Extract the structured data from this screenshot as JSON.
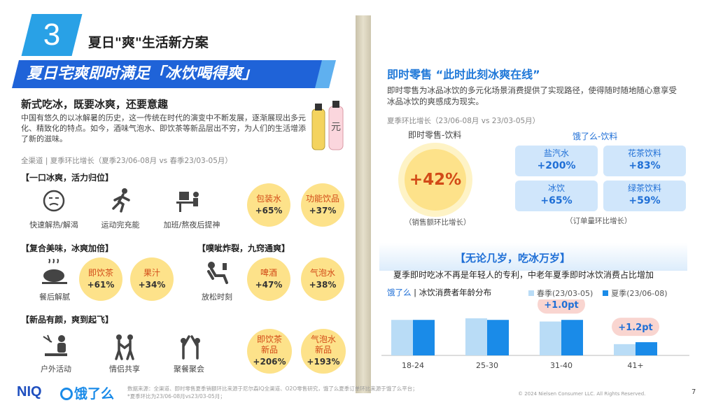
{
  "section": {
    "number": "3",
    "title": "夏日\"爽\"生活新方案"
  },
  "banner": {
    "text": "夏日宅爽即时满足「冰饮喝得爽」"
  },
  "left": {
    "heading": "新式吃冰，既要冰爽，还要意趣",
    "body": "中国有悠久的以冰解暑的历史，这一传统在时代的演变中不断发展，逐渐展现出多元化、精致化的特点。如今，酒味气泡水、即饮茶等新品层出不穷，为人们的生活增添了新的滋味。",
    "source_note": "全渠道 | 夏季环比增长（夏季23/06-08月 vs 春季23/03-05月）",
    "group1": {
      "title": "【一口冰爽，活力归位】",
      "icons": [
        {
          "icon": "tired-face-icon",
          "label": "快速解热/解渴"
        },
        {
          "icon": "running-person-icon",
          "label": "运动完充能"
        },
        {
          "icon": "desk-worker-icon",
          "label": "加班/熬夜后提神"
        }
      ],
      "circles": [
        {
          "name": "包装水",
          "value": "+65%"
        },
        {
          "name": "功能饮品",
          "value": "+37%"
        }
      ]
    },
    "group2": {
      "title": "【复合美味，冰爽加倍】",
      "icons": [
        {
          "icon": "roast-chicken-icon",
          "label": "餐后解腻"
        }
      ],
      "circles": [
        {
          "name": "即饮茶",
          "value": "+61%"
        },
        {
          "name": "果汁",
          "value": "+34%"
        }
      ]
    },
    "group3": {
      "title": "【噗呲炸裂，九窍通爽】",
      "icons": [
        {
          "icon": "relaxing-person-icon",
          "label": "放松时刻"
        }
      ],
      "circles": [
        {
          "name": "啤酒",
          "value": "+47%"
        },
        {
          "name": "气泡水",
          "value": "+38%"
        }
      ]
    },
    "group4": {
      "title": "【新品有颜，爽到起飞】",
      "icons": [
        {
          "icon": "outdoor-activity-icon",
          "label": "户外活动"
        },
        {
          "icon": "couple-icon",
          "label": "情侣共享"
        },
        {
          "icon": "toast-party-icon",
          "label": "聚餐聚会"
        }
      ],
      "circles": [
        {
          "name": "即饮茶\n新品",
          "line1": "即饮茶",
          "line2": "新品",
          "value": "+206%"
        },
        {
          "name": "气泡水\n新品",
          "line1": "气泡水",
          "line2": "新品",
          "value": "+193%"
        }
      ]
    }
  },
  "right": {
    "title": "即时零售  “此时此刻冰爽在线”",
    "body": "即时零售为冰品冰饮的多元化场景消费提供了实现路径，使得随时随地随心意享受冰品冰饮的爽感成为现实。",
    "source_note": "夏季环比增长（23/06-08月 vs 23/03-05月）",
    "instant_label": "即时零售-饮料",
    "instant_value": "+42%",
    "instant_caption": "（销售额环比增长）",
    "eleme_label": "饿了么-饮料",
    "eleme_caption": "（订单量环比增长）",
    "tiles": [
      {
        "name": "盐汽水",
        "value": "+200%"
      },
      {
        "name": "花茶饮料",
        "value": "+83%"
      },
      {
        "name": "冰饮",
        "value": "+65%"
      },
      {
        "name": "绿茶饮料",
        "value": "+59%"
      }
    ],
    "age_heading": "【无论几岁，吃冰万岁】",
    "age_text": "夏季即时吃冰不再是年轻人的专利，中老年夏季即时冰饮消费占比增加",
    "chart_source": "饿了么",
    "chart_source_sep": "|",
    "chart_title": "冰饮消费者年龄分布",
    "colors": {
      "spring": "#b9dcf6",
      "summer": "#1a8be8",
      "accent": "#1f6fd6",
      "yellow": "#fde28a"
    }
  },
  "chart_data": {
    "type": "bar",
    "categories": [
      "18-24",
      "25-30",
      "31-40",
      "41+"
    ],
    "series": [
      {
        "name": "春季(23/03-05)",
        "values": [
          22,
          23,
          21,
          7
        ]
      },
      {
        "name": "夏季(23/06-08)",
        "values": [
          22,
          22,
          22,
          8.2
        ]
      }
    ],
    "annotations": [
      {
        "category": "31-40",
        "text": "+1.0pt"
      },
      {
        "category": "41+",
        "text": "+1.2pt"
      }
    ],
    "legend": "top-right",
    "grid": false
  },
  "footer": {
    "logo_niq": "NIQ",
    "logo_eleme": "饿了么",
    "source": "数据来源：全渠道、即时零售夏季销额环比来源于尼尔森IQ全渠道、O2O零售研究，饿了么夏季订单环比来源于饿了么平台；",
    "source2": "*夏季环比为23/06-08月vs23/03-05月；",
    "copyright": "© 2024 Nielsen Consumer LLC. All Rights Reserved.",
    "page": "7"
  }
}
